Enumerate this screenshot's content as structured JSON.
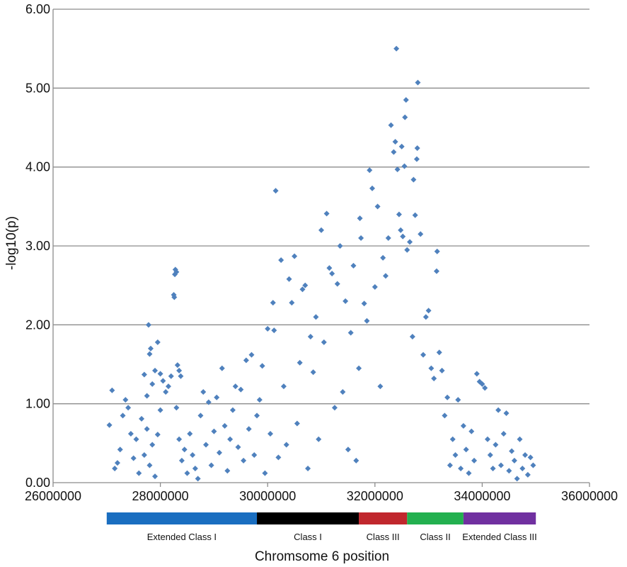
{
  "chart_data": {
    "type": "scatter",
    "title": "",
    "xlabel": "Chromsome 6 position",
    "ylabel": "-log10(p)",
    "xlim": [
      26000000,
      36000000
    ],
    "ylim": [
      0,
      6
    ],
    "x_ticks": [
      "26000000",
      "28000000",
      "30000000",
      "32000000",
      "34000000",
      "36000000"
    ],
    "y_ticks": [
      "0.00",
      "1.00",
      "2.00",
      "3.00",
      "4.00",
      "5.00",
      "6.00"
    ],
    "grid": true,
    "marker": "diamond",
    "point_color": "#4f81bd",
    "regions": [
      {
        "label": "Extended Class I",
        "start": 27000000,
        "end": 29800000,
        "color": "#1a6ec0"
      },
      {
        "label": "Class I",
        "start": 29800000,
        "end": 31700000,
        "color": "#000000"
      },
      {
        "label": "Class III",
        "start": 31700000,
        "end": 32600000,
        "color": "#c0272d"
      },
      {
        "label": "Class II",
        "start": 32600000,
        "end": 33650000,
        "color": "#23b04f"
      },
      {
        "label": "Extended Class III",
        "start": 33650000,
        "end": 35000000,
        "color": "#7030a0"
      }
    ],
    "series": [
      {
        "points": [
          [
            27050000,
            0.73
          ],
          [
            27100000,
            1.17
          ],
          [
            27150000,
            0.18
          ],
          [
            27200000,
            0.25
          ],
          [
            27250000,
            0.42
          ],
          [
            27300000,
            0.85
          ],
          [
            27350000,
            1.05
          ],
          [
            27400000,
            0.95
          ],
          [
            27450000,
            0.62
          ],
          [
            27500000,
            0.31
          ],
          [
            27550000,
            0.55
          ],
          [
            27600000,
            0.12
          ],
          [
            27650000,
            0.81
          ],
          [
            27700000,
            0.35
          ],
          [
            27750000,
            0.68
          ],
          [
            27800000,
            0.22
          ],
          [
            27850000,
            0.48
          ],
          [
            27900000,
            0.08
          ],
          [
            27950000,
            0.61
          ],
          [
            28000000,
            0.92
          ],
          [
            27700000,
            1.37
          ],
          [
            27750000,
            1.1
          ],
          [
            27800000,
            1.63
          ],
          [
            27820000,
            1.7
          ],
          [
            27780000,
            2.0
          ],
          [
            27850000,
            1.25
          ],
          [
            27900000,
            1.42
          ],
          [
            27950000,
            1.78
          ],
          [
            28000000,
            1.38
          ],
          [
            28050000,
            1.29
          ],
          [
            28100000,
            1.15
          ],
          [
            28150000,
            1.22
          ],
          [
            28200000,
            1.35
          ],
          [
            28250000,
            2.38
          ],
          [
            28260000,
            2.35
          ],
          [
            28270000,
            2.64
          ],
          [
            28280000,
            2.7
          ],
          [
            28300000,
            2.67
          ],
          [
            28320000,
            1.49
          ],
          [
            28350000,
            1.42
          ],
          [
            28380000,
            1.35
          ],
          [
            28300000,
            0.95
          ],
          [
            28350000,
            0.55
          ],
          [
            28400000,
            0.28
          ],
          [
            28450000,
            0.42
          ],
          [
            28500000,
            0.12
          ],
          [
            28550000,
            0.62
          ],
          [
            28600000,
            0.35
          ],
          [
            28650000,
            0.18
          ],
          [
            28700000,
            0.05
          ],
          [
            28750000,
            0.85
          ],
          [
            28800000,
            1.15
          ],
          [
            28850000,
            0.48
          ],
          [
            28900000,
            1.02
          ],
          [
            28950000,
            0.22
          ],
          [
            29000000,
            0.65
          ],
          [
            29050000,
            1.08
          ],
          [
            29100000,
            0.38
          ],
          [
            29150000,
            1.45
          ],
          [
            29200000,
            0.72
          ],
          [
            29250000,
            0.15
          ],
          [
            29300000,
            0.55
          ],
          [
            29350000,
            0.92
          ],
          [
            29400000,
            1.22
          ],
          [
            29450000,
            0.45
          ],
          [
            29500000,
            1.18
          ],
          [
            29550000,
            0.28
          ],
          [
            29600000,
            1.55
          ],
          [
            29650000,
            0.68
          ],
          [
            29700000,
            1.62
          ],
          [
            29750000,
            0.35
          ],
          [
            29800000,
            0.85
          ],
          [
            29850000,
            1.05
          ],
          [
            29900000,
            1.48
          ],
          [
            29950000,
            0.12
          ],
          [
            30000000,
            1.95
          ],
          [
            30050000,
            0.62
          ],
          [
            30100000,
            2.28
          ],
          [
            30120000,
            1.93
          ],
          [
            30150000,
            3.7
          ],
          [
            30200000,
            0.32
          ],
          [
            30250000,
            2.82
          ],
          [
            30300000,
            1.22
          ],
          [
            30350000,
            0.48
          ],
          [
            30400000,
            2.58
          ],
          [
            30450000,
            2.28
          ],
          [
            30500000,
            2.87
          ],
          [
            30550000,
            0.75
          ],
          [
            30600000,
            1.52
          ],
          [
            30650000,
            2.45
          ],
          [
            30700000,
            2.5
          ],
          [
            30750000,
            0.18
          ],
          [
            30800000,
            1.85
          ],
          [
            30850000,
            1.4
          ],
          [
            30900000,
            2.1
          ],
          [
            30950000,
            0.55
          ],
          [
            31000000,
            3.2
          ],
          [
            31050000,
            1.78
          ],
          [
            31100000,
            3.41
          ],
          [
            31150000,
            2.72
          ],
          [
            31200000,
            2.65
          ],
          [
            31250000,
            0.95
          ],
          [
            31300000,
            2.52
          ],
          [
            31350000,
            3.0
          ],
          [
            31400000,
            1.15
          ],
          [
            31450000,
            2.3
          ],
          [
            31500000,
            0.42
          ],
          [
            31550000,
            1.9
          ],
          [
            31600000,
            2.75
          ],
          [
            31650000,
            0.28
          ],
          [
            31700000,
            1.45
          ],
          [
            31720000,
            3.35
          ],
          [
            31740000,
            3.1
          ],
          [
            31800000,
            2.27
          ],
          [
            31850000,
            2.05
          ],
          [
            31900000,
            3.96
          ],
          [
            31950000,
            3.73
          ],
          [
            32000000,
            2.48
          ],
          [
            32050000,
            3.5
          ],
          [
            32100000,
            1.22
          ],
          [
            32150000,
            2.85
          ],
          [
            32200000,
            2.62
          ],
          [
            32250000,
            3.1
          ],
          [
            32300000,
            4.53
          ],
          [
            32350000,
            4.19
          ],
          [
            32380000,
            4.32
          ],
          [
            32400000,
            5.5
          ],
          [
            32420000,
            3.97
          ],
          [
            32450000,
            3.4
          ],
          [
            32480000,
            3.2
          ],
          [
            32500000,
            4.26
          ],
          [
            32520000,
            3.12
          ],
          [
            32550000,
            4.01
          ],
          [
            32560000,
            4.63
          ],
          [
            32580000,
            4.85
          ],
          [
            32600000,
            2.95
          ],
          [
            32650000,
            3.05
          ],
          [
            32700000,
            1.85
          ],
          [
            32720000,
            3.84
          ],
          [
            32750000,
            3.39
          ],
          [
            32780000,
            4.1
          ],
          [
            32790000,
            4.24
          ],
          [
            32800000,
            5.07
          ],
          [
            32850000,
            3.15
          ],
          [
            32900000,
            1.62
          ],
          [
            32950000,
            2.1
          ],
          [
            33000000,
            2.18
          ],
          [
            33050000,
            1.45
          ],
          [
            33100000,
            1.32
          ],
          [
            33150000,
            2.68
          ],
          [
            33160000,
            2.93
          ],
          [
            33200000,
            1.65
          ],
          [
            33250000,
            1.42
          ],
          [
            33300000,
            0.85
          ],
          [
            33350000,
            1.08
          ],
          [
            33400000,
            0.22
          ],
          [
            33450000,
            0.55
          ],
          [
            33500000,
            0.35
          ],
          [
            33550000,
            1.05
          ],
          [
            33600000,
            0.18
          ],
          [
            33650000,
            0.72
          ],
          [
            33700000,
            0.42
          ],
          [
            33750000,
            0.12
          ],
          [
            33800000,
            0.65
          ],
          [
            33850000,
            0.28
          ],
          [
            33900000,
            1.38
          ],
          [
            33950000,
            1.28
          ],
          [
            34000000,
            1.25
          ],
          [
            34050000,
            1.2
          ],
          [
            34100000,
            0.55
          ],
          [
            34150000,
            0.35
          ],
          [
            34200000,
            0.18
          ],
          [
            34250000,
            0.48
          ],
          [
            34300000,
            0.92
          ],
          [
            34350000,
            0.22
          ],
          [
            34400000,
            0.62
          ],
          [
            34450000,
            0.88
          ],
          [
            34500000,
            0.15
          ],
          [
            34550000,
            0.4
          ],
          [
            34600000,
            0.28
          ],
          [
            34650000,
            0.05
          ],
          [
            34700000,
            0.55
          ],
          [
            34750000,
            0.18
          ],
          [
            34800000,
            0.35
          ],
          [
            34850000,
            0.1
          ],
          [
            34900000,
            0.32
          ],
          [
            34950000,
            0.22
          ]
        ]
      }
    ]
  }
}
